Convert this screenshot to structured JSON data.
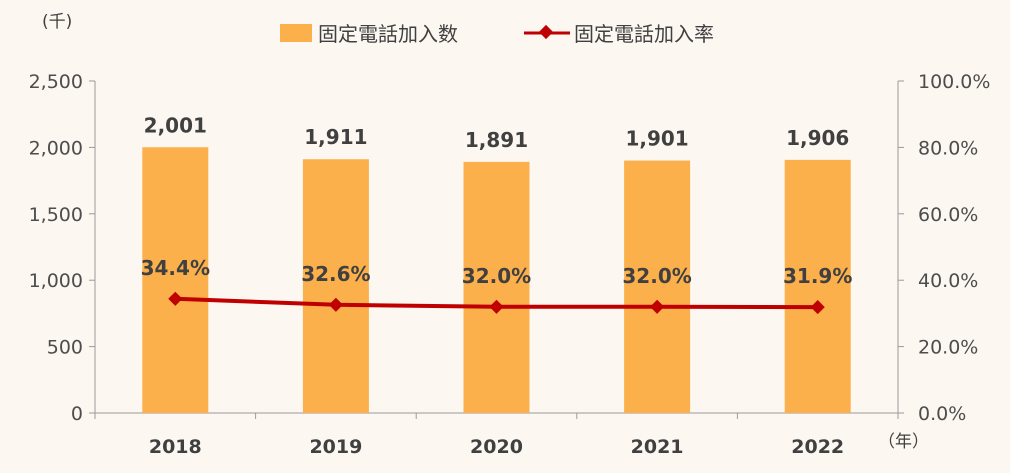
{
  "chart_data": {
    "type": "bar",
    "categories": [
      "2018",
      "2019",
      "2020",
      "2021",
      "2022"
    ],
    "series": [
      {
        "name": "固定電話加入数",
        "type": "bar",
        "axis": "left",
        "values": [
          2001,
          1911,
          1891,
          1901,
          1906
        ],
        "labels": [
          "2,001",
          "1,911",
          "1,891",
          "1,901",
          "1,906"
        ],
        "color": "#FBB04B"
      },
      {
        "name": "固定電話加入率",
        "type": "line",
        "axis": "right",
        "values": [
          34.4,
          32.6,
          32.0,
          32.0,
          31.9
        ],
        "labels": [
          "34.4%",
          "32.6%",
          "32.0%",
          "32.0%",
          "31.9%"
        ],
        "color": "#C00000",
        "marker": "diamond"
      }
    ],
    "y_left": {
      "range": [
        0,
        2500
      ],
      "ticks": [
        0,
        500,
        1000,
        1500,
        2000,
        2500
      ],
      "tick_labels": [
        "0",
        "500",
        "1,000",
        "1,500",
        "2,000",
        "2,500"
      ],
      "unit_label": "(千)"
    },
    "y_right": {
      "range": [
        0,
        100
      ],
      "ticks": [
        0,
        20,
        40,
        60,
        80,
        100
      ],
      "tick_labels": [
        "0.0%",
        "20.0%",
        "40.0%",
        "60.0%",
        "80.0%",
        "100.0%"
      ]
    },
    "x_unit_label": "（年）",
    "legend_position": "top",
    "grid": false
  }
}
